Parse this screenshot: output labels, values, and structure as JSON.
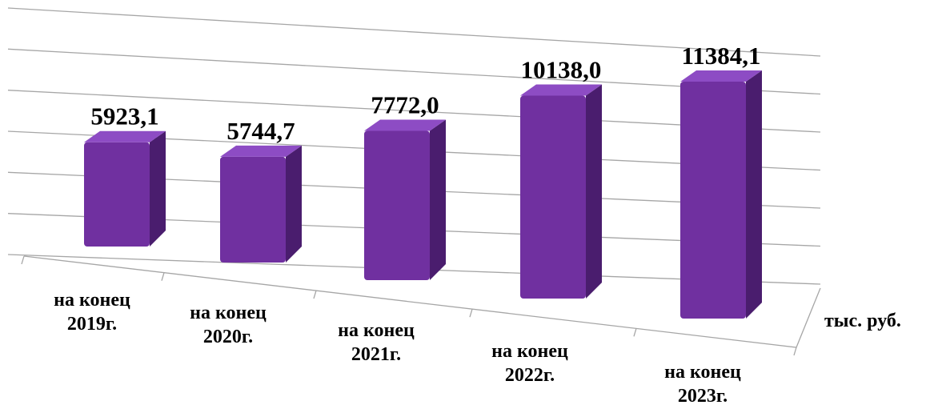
{
  "chart_data": {
    "type": "bar3d",
    "categories": [
      "на конец 2019г.",
      "на конец 2020г.",
      "на конец 2021г.",
      "на конец 2022г.",
      "на конец 2023г."
    ],
    "values": [
      5923.1,
      5744.7,
      7772.0,
      10138.0,
      11384.1
    ],
    "value_labels": [
      "5923,1",
      "5744,7",
      "7772,0",
      "10138,0",
      "11384,1"
    ],
    "y_label": "тыс. руб.",
    "color": "#7030a0",
    "ylim": [
      0,
      12000
    ],
    "yticks": [
      0,
      2000,
      4000,
      6000,
      8000,
      10000,
      12000
    ],
    "grid": true
  }
}
